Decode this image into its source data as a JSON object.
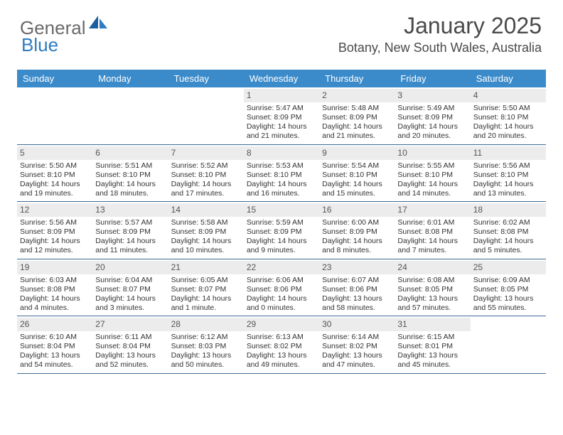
{
  "brand": {
    "word1": "General",
    "word2": "Blue"
  },
  "title": "January 2025",
  "location": "Botany, New South Wales, Australia",
  "colors": {
    "header_bg": "#3b8bca",
    "header_text": "#ffffff",
    "daynum_bg": "#ececec",
    "week_divider": "#3b6b93",
    "body_text": "#333333",
    "title_text": "#4a4a4a",
    "logo_gray": "#6a6a6a",
    "logo_blue": "#2f7cc0"
  },
  "calendar": {
    "day_names": [
      "Sunday",
      "Monday",
      "Tuesday",
      "Wednesday",
      "Thursday",
      "Friday",
      "Saturday"
    ],
    "weeks": [
      [
        {
          "empty": true
        },
        {
          "empty": true
        },
        {
          "empty": true
        },
        {
          "n": "1",
          "sunrise": "5:47 AM",
          "sunset": "8:09 PM",
          "daylight": "14 hours and 21 minutes."
        },
        {
          "n": "2",
          "sunrise": "5:48 AM",
          "sunset": "8:09 PM",
          "daylight": "14 hours and 21 minutes."
        },
        {
          "n": "3",
          "sunrise": "5:49 AM",
          "sunset": "8:09 PM",
          "daylight": "14 hours and 20 minutes."
        },
        {
          "n": "4",
          "sunrise": "5:50 AM",
          "sunset": "8:10 PM",
          "daylight": "14 hours and 20 minutes."
        }
      ],
      [
        {
          "n": "5",
          "sunrise": "5:50 AM",
          "sunset": "8:10 PM",
          "daylight": "14 hours and 19 minutes."
        },
        {
          "n": "6",
          "sunrise": "5:51 AM",
          "sunset": "8:10 PM",
          "daylight": "14 hours and 18 minutes."
        },
        {
          "n": "7",
          "sunrise": "5:52 AM",
          "sunset": "8:10 PM",
          "daylight": "14 hours and 17 minutes."
        },
        {
          "n": "8",
          "sunrise": "5:53 AM",
          "sunset": "8:10 PM",
          "daylight": "14 hours and 16 minutes."
        },
        {
          "n": "9",
          "sunrise": "5:54 AM",
          "sunset": "8:10 PM",
          "daylight": "14 hours and 15 minutes."
        },
        {
          "n": "10",
          "sunrise": "5:55 AM",
          "sunset": "8:10 PM",
          "daylight": "14 hours and 14 minutes."
        },
        {
          "n": "11",
          "sunrise": "5:56 AM",
          "sunset": "8:10 PM",
          "daylight": "14 hours and 13 minutes."
        }
      ],
      [
        {
          "n": "12",
          "sunrise": "5:56 AM",
          "sunset": "8:09 PM",
          "daylight": "14 hours and 12 minutes."
        },
        {
          "n": "13",
          "sunrise": "5:57 AM",
          "sunset": "8:09 PM",
          "daylight": "14 hours and 11 minutes."
        },
        {
          "n": "14",
          "sunrise": "5:58 AM",
          "sunset": "8:09 PM",
          "daylight": "14 hours and 10 minutes."
        },
        {
          "n": "15",
          "sunrise": "5:59 AM",
          "sunset": "8:09 PM",
          "daylight": "14 hours and 9 minutes."
        },
        {
          "n": "16",
          "sunrise": "6:00 AM",
          "sunset": "8:09 PM",
          "daylight": "14 hours and 8 minutes."
        },
        {
          "n": "17",
          "sunrise": "6:01 AM",
          "sunset": "8:08 PM",
          "daylight": "14 hours and 7 minutes."
        },
        {
          "n": "18",
          "sunrise": "6:02 AM",
          "sunset": "8:08 PM",
          "daylight": "14 hours and 5 minutes."
        }
      ],
      [
        {
          "n": "19",
          "sunrise": "6:03 AM",
          "sunset": "8:08 PM",
          "daylight": "14 hours and 4 minutes."
        },
        {
          "n": "20",
          "sunrise": "6:04 AM",
          "sunset": "8:07 PM",
          "daylight": "14 hours and 3 minutes."
        },
        {
          "n": "21",
          "sunrise": "6:05 AM",
          "sunset": "8:07 PM",
          "daylight": "14 hours and 1 minute."
        },
        {
          "n": "22",
          "sunrise": "6:06 AM",
          "sunset": "8:06 PM",
          "daylight": "14 hours and 0 minutes."
        },
        {
          "n": "23",
          "sunrise": "6:07 AM",
          "sunset": "8:06 PM",
          "daylight": "13 hours and 58 minutes."
        },
        {
          "n": "24",
          "sunrise": "6:08 AM",
          "sunset": "8:05 PM",
          "daylight": "13 hours and 57 minutes."
        },
        {
          "n": "25",
          "sunrise": "6:09 AM",
          "sunset": "8:05 PM",
          "daylight": "13 hours and 55 minutes."
        }
      ],
      [
        {
          "n": "26",
          "sunrise": "6:10 AM",
          "sunset": "8:04 PM",
          "daylight": "13 hours and 54 minutes."
        },
        {
          "n": "27",
          "sunrise": "6:11 AM",
          "sunset": "8:04 PM",
          "daylight": "13 hours and 52 minutes."
        },
        {
          "n": "28",
          "sunrise": "6:12 AM",
          "sunset": "8:03 PM",
          "daylight": "13 hours and 50 minutes."
        },
        {
          "n": "29",
          "sunrise": "6:13 AM",
          "sunset": "8:02 PM",
          "daylight": "13 hours and 49 minutes."
        },
        {
          "n": "30",
          "sunrise": "6:14 AM",
          "sunset": "8:02 PM",
          "daylight": "13 hours and 47 minutes."
        },
        {
          "n": "31",
          "sunrise": "6:15 AM",
          "sunset": "8:01 PM",
          "daylight": "13 hours and 45 minutes."
        },
        {
          "empty": true
        }
      ]
    ],
    "labels": {
      "sunrise": "Sunrise:",
      "sunset": "Sunset:",
      "daylight": "Daylight:"
    }
  }
}
